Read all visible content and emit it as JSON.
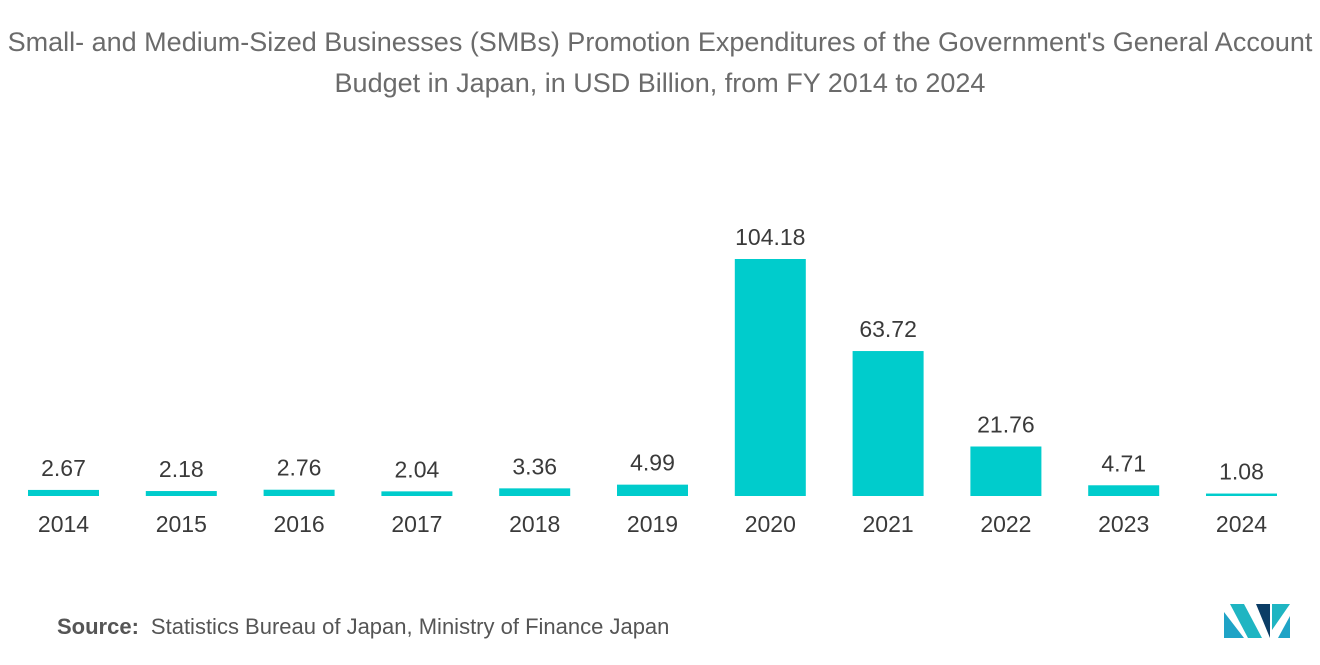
{
  "title": "Small- and Medium-Sized Businesses (SMBs) Promotion Expenditures of the Government's General Account Budget in Japan, in USD Billion, from FY 2014 to 2024",
  "source": {
    "label": "Source:",
    "text": "Statistics Bureau of Japan, Ministry of Finance Japan"
  },
  "logo": {
    "icon": "mordor-intelligence-logo-icon",
    "colors": [
      "#1fa3c6",
      "#1fb5c2",
      "#0b3d66"
    ]
  },
  "chart_data": {
    "type": "bar",
    "title": "Small- and Medium-Sized Businesses (SMBs) Promotion Expenditures of the Government's General Account Budget in Japan, in USD Billion, from FY 2014 to 2024",
    "xlabel": "",
    "ylabel": "",
    "categories": [
      "2014",
      "2015",
      "2016",
      "2017",
      "2018",
      "2019",
      "2020",
      "2021",
      "2022",
      "2023",
      "2024"
    ],
    "values": [
      2.67,
      2.18,
      2.76,
      2.04,
      3.36,
      4.99,
      104.18,
      63.72,
      21.76,
      4.71,
      1.08
    ],
    "value_labels": [
      "2.67",
      "2.18",
      "2.76",
      "2.04",
      "3.36",
      "4.99",
      "104.18",
      "63.72",
      "21.76",
      "4.71",
      "1.08"
    ],
    "ylim": [
      0,
      104.18
    ],
    "bar_color": "#00cccc",
    "grid": false,
    "legend": "none",
    "y_axis_visible": false
  }
}
